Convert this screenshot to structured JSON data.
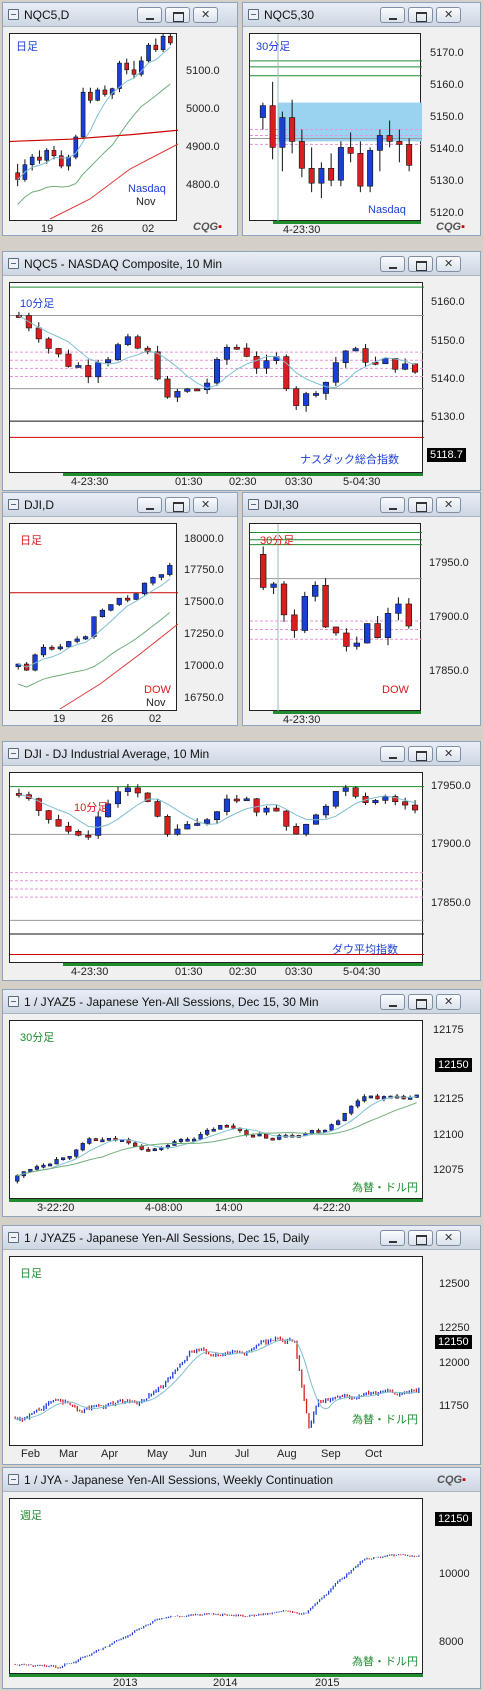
{
  "colors": {
    "up": "#1a3fd6",
    "down": "#d81e1e",
    "ma_fast": "#7fbfd0",
    "ma_slow": "#6fae7a",
    "ma_long": "#e03a3a"
  },
  "icons": {
    "window": "chart-window-icon",
    "minimize": "minimize-icon",
    "maximize": "maximize-icon",
    "close": "close-icon"
  },
  "brand": "CQG",
  "windows": [
    {
      "title": "NQC5,D",
      "label": "日足",
      "label_color": "#1a3fd6",
      "corner": "Nasdaq",
      "corner_color": "#1a3fd6",
      "corner2": "Nov",
      "y_ticks": [
        "5100.0",
        "5000.0",
        "4900.0",
        "4800.0"
      ],
      "x_ticks": [
        "19",
        "26",
        "02"
      ],
      "chart_data": {
        "type": "candlestick",
        "ylim": [
          4740,
          5160
        ],
        "bars": [
          [
            4850,
            4870,
            4820,
            4835
          ],
          [
            4835,
            4880,
            4830,
            4868
          ],
          [
            4868,
            4892,
            4855,
            4885
          ],
          [
            4885,
            4900,
            4870,
            4878
          ],
          [
            4878,
            4905,
            4870,
            4900
          ],
          [
            4900,
            4910,
            4880,
            4888
          ],
          [
            4888,
            4900,
            4860,
            4865
          ],
          [
            4865,
            4890,
            4855,
            4885
          ],
          [
            4885,
            4935,
            4880,
            4930
          ],
          [
            4930,
            5040,
            4925,
            5030
          ],
          [
            5030,
            5040,
            5005,
            5012
          ],
          [
            5012,
            5040,
            5010,
            5035
          ],
          [
            5035,
            5045,
            5020,
            5025
          ],
          [
            5025,
            5040,
            5015,
            5038
          ],
          [
            5038,
            5100,
            5030,
            5095
          ],
          [
            5095,
            5105,
            5070,
            5080
          ],
          [
            5080,
            5100,
            5060,
            5070
          ],
          [
            5070,
            5110,
            5065,
            5100
          ],
          [
            5100,
            5140,
            5095,
            5135
          ],
          [
            5135,
            5150,
            5120,
            5125
          ],
          [
            5125,
            5165,
            5120,
            5155
          ],
          [
            5155,
            5162,
            5135,
            5140
          ]
        ]
      }
    },
    {
      "title": "NQC5,30",
      "label": "30分足",
      "label_color": "#1a3fd6",
      "corner": "Nasdaq",
      "corner_color": "#1a3fd6",
      "y_ticks": [
        "5170.0",
        "5160.0",
        "5150.0",
        "5140.0",
        "5130.0",
        "5120.0"
      ],
      "x_ticks": [
        "4-23:30"
      ],
      "chart_data": {
        "type": "candlestick",
        "ylim": [
          5115,
          5178
        ],
        "bars": [
          [
            5150,
            5155,
            5146,
            5154
          ],
          [
            5154,
            5162,
            5136,
            5140
          ],
          [
            5140,
            5152,
            5132,
            5150
          ],
          [
            5150,
            5156,
            5138,
            5142
          ],
          [
            5142,
            5146,
            5130,
            5133
          ],
          [
            5133,
            5140,
            5125,
            5128
          ],
          [
            5128,
            5135,
            5123,
            5133
          ],
          [
            5133,
            5138,
            5127,
            5129
          ],
          [
            5129,
            5142,
            5127,
            5140
          ],
          [
            5140,
            5145,
            5135,
            5138
          ],
          [
            5138,
            5142,
            5125,
            5127
          ],
          [
            5127,
            5140,
            5125,
            5139
          ],
          [
            5139,
            5146,
            5132,
            5144
          ],
          [
            5144,
            5149,
            5140,
            5142
          ],
          [
            5142,
            5146,
            5135,
            5141
          ],
          [
            5141,
            5143,
            5132,
            5134
          ]
        ]
      }
    },
    {
      "title": "NQC5 - NASDAQ Composite, 10 Min",
      "label": "10分足",
      "label_color": "#1a3fd6",
      "corner": "ナスダック総合指数",
      "corner_color": "#1a3fd6",
      "y_ticks": [
        "5160.0",
        "5150.0",
        "5140.0",
        "5130.0",
        "5120.0"
      ],
      "price_box": "5118.7",
      "x_ticks": [
        "4-23:30",
        "01:30",
        "02:30",
        "03:30",
        "5-04:30"
      ]
    },
    {
      "title": "DJI,D",
      "label": "日足",
      "label_color": "#d81e1e",
      "corner": "DOW",
      "corner_color": "#d81e1e",
      "corner2": "Nov",
      "y_ticks": [
        "18000.0",
        "17750.0",
        "17500.0",
        "17250.0",
        "17000.0",
        "16750.0"
      ],
      "x_ticks": [
        "19",
        "26",
        "02"
      ]
    },
    {
      "title": "DJI,30",
      "label": "30分足",
      "label_color": "#d81e1e",
      "corner": "DOW",
      "corner_color": "#d81e1e",
      "y_ticks": [
        "17950.0",
        "17900.0",
        "17850.0"
      ],
      "x_ticks": [
        "4-23:30"
      ]
    },
    {
      "title": "DJI - DJ Industrial Average, 10 Min",
      "label": "10分足",
      "label_color": "#d81e1e",
      "corner": "ダウ平均指数",
      "corner_color": "#1a3fd6",
      "y_ticks": [
        "17950.0",
        "17900.0",
        "17850.0"
      ],
      "x_ticks": [
        "4-23:30",
        "01:30",
        "02:30",
        "03:30",
        "5-04:30"
      ]
    },
    {
      "title": "1 / JYAZ5 - Japanese Yen-All Sessions, Dec 15, 30 Min",
      "label": "30分足",
      "label_color": "#1f8c2e",
      "corner": "為替・ドル円",
      "corner_color": "#1f8c2e",
      "y_ticks": [
        "12175",
        "12150",
        "12125",
        "12100",
        "12075"
      ],
      "price_box": "12150",
      "x_ticks": [
        "3-22:20",
        "4-08:00",
        "14:00",
        "4-22:20"
      ]
    },
    {
      "title": "1 / JYAZ5 - Japanese Yen-All Sessions, Dec 15, Daily",
      "label": "日足",
      "label_color": "#1f8c2e",
      "corner": "為替・ドル円",
      "corner_color": "#1f8c2e",
      "y_ticks": [
        "12500",
        "12250",
        "12000",
        "11750"
      ],
      "price_box": "12150",
      "x_ticks": [
        "Feb",
        "Mar",
        "Apr",
        "May",
        "Jun",
        "Jul",
        "Aug",
        "Sep",
        "Oct"
      ]
    },
    {
      "title": "1 / JYA - Japanese Yen-All Sessions, Weekly Continuation",
      "label": "週足",
      "label_color": "#1f8c2e",
      "corner": "為替・ドル円",
      "corner_color": "#1f8c2e",
      "y_ticks": [
        "10000",
        "8000"
      ],
      "price_box": "12150",
      "x_ticks": [
        "2013",
        "2014",
        "2015"
      ]
    }
  ]
}
